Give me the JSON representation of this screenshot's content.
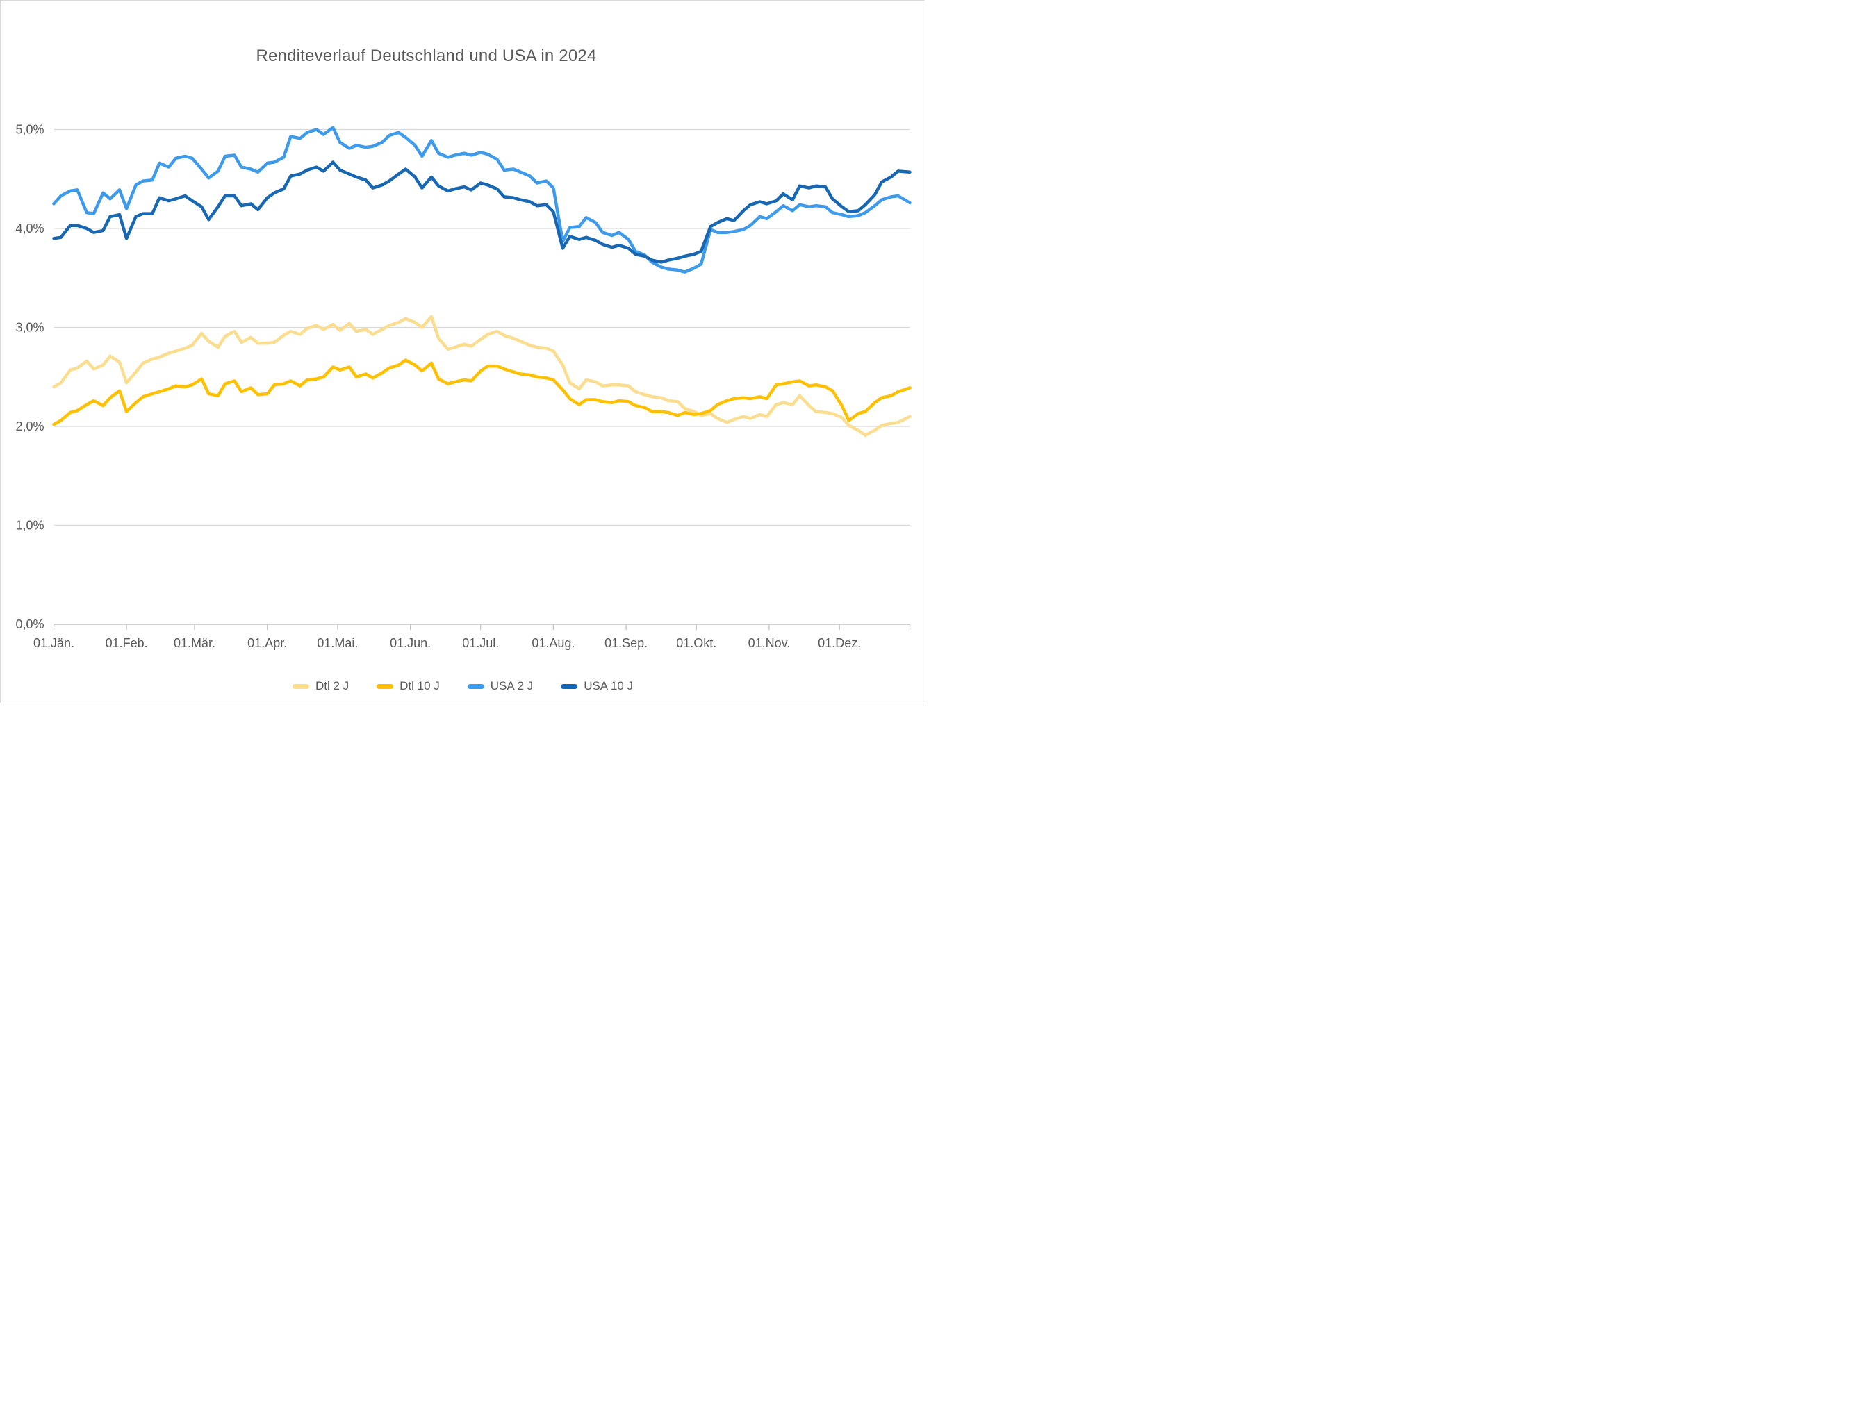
{
  "title": "Renditeverlauf Deutschland und USA in 2024",
  "colors": {
    "gridline": "#D9D9D9",
    "axis_line": "#BFBFBF",
    "text": "#595959",
    "background": "#FFFFFF",
    "dtl_2j": "#FBDD8F",
    "dtl_10j": "#FFC000",
    "usa_2j": "#3E9BEB",
    "usa_10j": "#1767B2"
  },
  "chart_data": {
    "type": "line",
    "title": "Renditeverlauf Deutschland und USA in 2024",
    "xlabel": "",
    "ylabel": "",
    "grid": true,
    "legend_position": "bottom",
    "x_axis": {
      "unit": "day-of-year 2024",
      "range_doy": [
        1,
        366
      ],
      "tick_doys": [
        1,
        32,
        61,
        92,
        122,
        153,
        183,
        214,
        245,
        275,
        306,
        336
      ],
      "tick_labels": [
        "01.Jän.",
        "01.Feb.",
        "01.Mär.",
        "01.Apr.",
        "01.Mai.",
        "01.Jun.",
        "01.Jul.",
        "01.Aug.",
        "01.Sep.",
        "01.Okt.",
        "01.Nov.",
        "01.Dez."
      ]
    },
    "y_axis": {
      "unit": "percent yield",
      "ylim": [
        0,
        5.3
      ],
      "tick_values": [
        0,
        1,
        2,
        3,
        4,
        5
      ],
      "tick_labels": [
        "0,0%",
        "1,0%",
        "2,0%",
        "3,0%",
        "4,0%",
        "5,0%"
      ]
    },
    "x_doy": [
      1,
      4,
      8,
      11,
      15,
      18,
      22,
      25,
      29,
      32,
      36,
      39,
      43,
      46,
      50,
      53,
      57,
      60,
      64,
      67,
      71,
      74,
      78,
      81,
      85,
      88,
      92,
      95,
      99,
      102,
      106,
      109,
      113,
      116,
      120,
      123,
      127,
      130,
      134,
      137,
      141,
      144,
      148,
      151,
      155,
      158,
      162,
      165,
      169,
      172,
      176,
      179,
      183,
      186,
      190,
      193,
      197,
      200,
      204,
      207,
      211,
      214,
      218,
      221,
      225,
      228,
      232,
      235,
      239,
      242,
      246,
      249,
      253,
      256,
      260,
      263,
      267,
      270,
      274,
      277,
      281,
      284,
      288,
      291,
      295,
      298,
      302,
      305,
      309,
      312,
      316,
      319,
      323,
      326,
      330,
      333,
      337,
      340,
      344,
      347,
      351,
      354,
      358,
      361,
      366
    ],
    "series": [
      {
        "name": "Dtl 2 J",
        "color": "#FBDD8F",
        "values": [
          2.4,
          2.44,
          2.57,
          2.59,
          2.66,
          2.58,
          2.62,
          2.71,
          2.65,
          2.44,
          2.55,
          2.64,
          2.68,
          2.7,
          2.74,
          2.76,
          2.79,
          2.82,
          2.94,
          2.86,
          2.8,
          2.91,
          2.96,
          2.85,
          2.9,
          2.84,
          2.84,
          2.85,
          2.92,
          2.96,
          2.93,
          2.99,
          3.02,
          2.98,
          3.03,
          2.97,
          3.04,
          2.96,
          2.98,
          2.93,
          2.98,
          3.02,
          3.05,
          3.09,
          3.05,
          3.0,
          3.11,
          2.89,
          2.78,
          2.8,
          2.83,
          2.81,
          2.88,
          2.93,
          2.96,
          2.92,
          2.89,
          2.86,
          2.82,
          2.8,
          2.79,
          2.76,
          2.62,
          2.44,
          2.38,
          2.47,
          2.45,
          2.41,
          2.42,
          2.42,
          2.41,
          2.35,
          2.32,
          2.3,
          2.29,
          2.26,
          2.25,
          2.18,
          2.15,
          2.11,
          2.13,
          2.08,
          2.04,
          2.07,
          2.1,
          2.08,
          2.12,
          2.1,
          2.22,
          2.24,
          2.22,
          2.31,
          2.21,
          2.15,
          2.14,
          2.13,
          2.09,
          2.01,
          1.96,
          1.91,
          1.96,
          2.01,
          2.03,
          2.04,
          2.1
        ]
      },
      {
        "name": "Dtl 10 J",
        "color": "#FFC000",
        "values": [
          2.02,
          2.06,
          2.14,
          2.16,
          2.22,
          2.26,
          2.21,
          2.29,
          2.36,
          2.15,
          2.24,
          2.3,
          2.33,
          2.35,
          2.38,
          2.41,
          2.4,
          2.42,
          2.48,
          2.33,
          2.31,
          2.43,
          2.46,
          2.35,
          2.39,
          2.32,
          2.33,
          2.42,
          2.43,
          2.46,
          2.41,
          2.47,
          2.48,
          2.5,
          2.6,
          2.57,
          2.6,
          2.5,
          2.53,
          2.49,
          2.54,
          2.59,
          2.62,
          2.67,
          2.62,
          2.56,
          2.64,
          2.48,
          2.43,
          2.45,
          2.47,
          2.46,
          2.56,
          2.61,
          2.61,
          2.58,
          2.55,
          2.53,
          2.52,
          2.5,
          2.49,
          2.47,
          2.37,
          2.28,
          2.22,
          2.27,
          2.27,
          2.25,
          2.24,
          2.26,
          2.25,
          2.21,
          2.19,
          2.15,
          2.15,
          2.14,
          2.11,
          2.14,
          2.12,
          2.13,
          2.16,
          2.22,
          2.26,
          2.28,
          2.29,
          2.28,
          2.3,
          2.28,
          2.42,
          2.43,
          2.45,
          2.46,
          2.41,
          2.42,
          2.4,
          2.36,
          2.21,
          2.06,
          2.13,
          2.15,
          2.24,
          2.29,
          2.31,
          2.35,
          2.39
        ]
      },
      {
        "name": "USA 2 J",
        "color": "#3E9BEB",
        "values": [
          4.25,
          4.33,
          4.38,
          4.39,
          4.16,
          4.15,
          4.36,
          4.3,
          4.39,
          4.2,
          4.44,
          4.48,
          4.49,
          4.66,
          4.62,
          4.71,
          4.73,
          4.71,
          4.6,
          4.51,
          4.58,
          4.73,
          4.74,
          4.62,
          4.6,
          4.57,
          4.66,
          4.67,
          4.72,
          4.93,
          4.91,
          4.97,
          5.0,
          4.95,
          5.02,
          4.87,
          4.81,
          4.84,
          4.82,
          4.83,
          4.87,
          4.94,
          4.97,
          4.92,
          4.84,
          4.73,
          4.89,
          4.76,
          4.72,
          4.74,
          4.76,
          4.74,
          4.77,
          4.75,
          4.7,
          4.59,
          4.6,
          4.57,
          4.53,
          4.46,
          4.48,
          4.41,
          3.87,
          4.01,
          4.02,
          4.11,
          4.06,
          3.96,
          3.93,
          3.96,
          3.89,
          3.77,
          3.73,
          3.66,
          3.61,
          3.59,
          3.58,
          3.56,
          3.6,
          3.64,
          3.99,
          3.96,
          3.96,
          3.97,
          3.99,
          4.03,
          4.12,
          4.1,
          4.17,
          4.23,
          4.18,
          4.24,
          4.22,
          4.23,
          4.22,
          4.16,
          4.14,
          4.12,
          4.13,
          4.16,
          4.23,
          4.29,
          4.32,
          4.33,
          4.26
        ]
      },
      {
        "name": "USA 10 J",
        "color": "#1767B2",
        "values": [
          3.9,
          3.91,
          4.03,
          4.03,
          4.0,
          3.96,
          3.98,
          4.12,
          4.14,
          3.9,
          4.12,
          4.15,
          4.15,
          4.31,
          4.28,
          4.3,
          4.33,
          4.28,
          4.22,
          4.09,
          4.22,
          4.33,
          4.33,
          4.23,
          4.25,
          4.19,
          4.31,
          4.36,
          4.4,
          4.53,
          4.55,
          4.59,
          4.62,
          4.58,
          4.67,
          4.59,
          4.55,
          4.52,
          4.49,
          4.41,
          4.44,
          4.48,
          4.55,
          4.6,
          4.52,
          4.41,
          4.52,
          4.43,
          4.38,
          4.4,
          4.42,
          4.39,
          4.46,
          4.44,
          4.4,
          4.32,
          4.31,
          4.29,
          4.27,
          4.23,
          4.24,
          4.17,
          3.8,
          3.92,
          3.89,
          3.91,
          3.88,
          3.84,
          3.81,
          3.83,
          3.8,
          3.74,
          3.72,
          3.68,
          3.66,
          3.68,
          3.7,
          3.72,
          3.74,
          3.77,
          4.02,
          4.06,
          4.1,
          4.08,
          4.18,
          4.24,
          4.27,
          4.25,
          4.28,
          4.35,
          4.29,
          4.43,
          4.41,
          4.43,
          4.42,
          4.3,
          4.22,
          4.17,
          4.18,
          4.24,
          4.34,
          4.47,
          4.52,
          4.58,
          4.57
        ]
      }
    ]
  }
}
